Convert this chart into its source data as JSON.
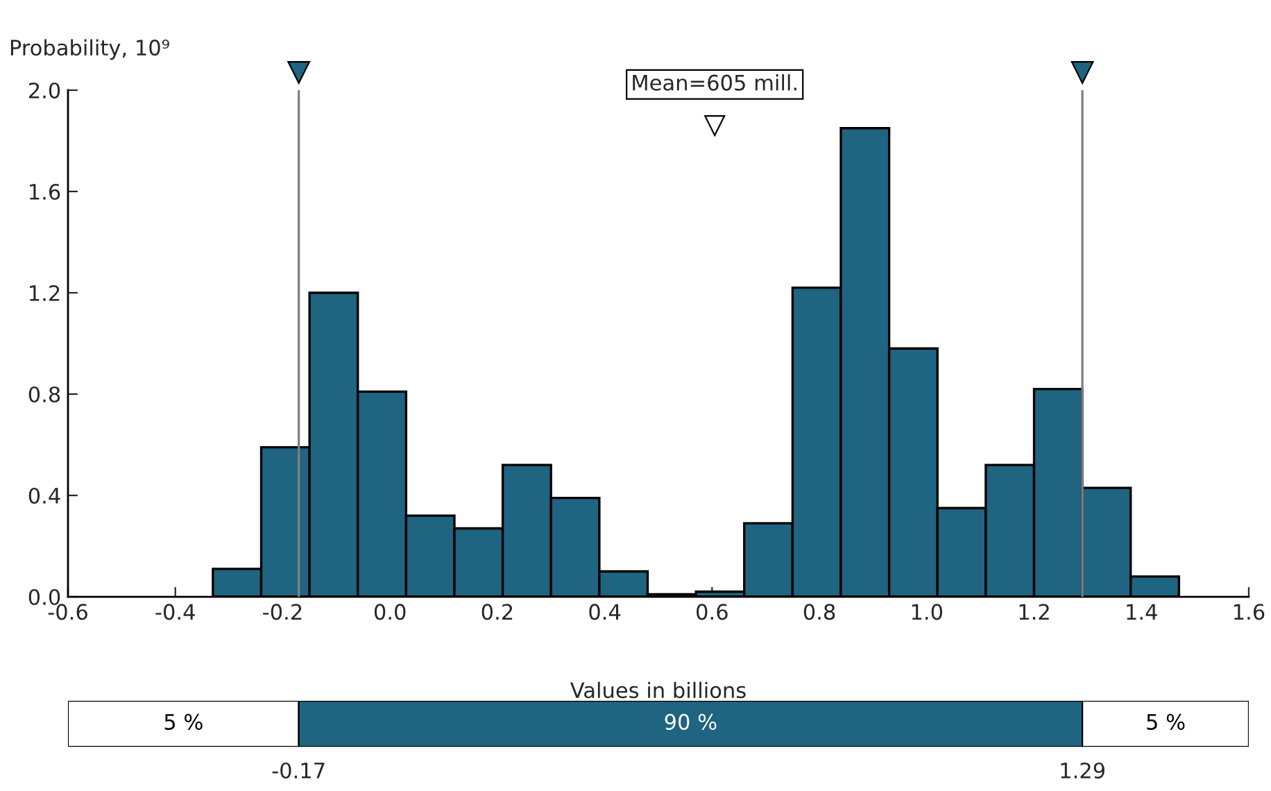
{
  "chart_data": [
    {
      "type": "histogram",
      "ylabel": "Probability, 10⁹",
      "xlabel": "Values in billions",
      "color": "#1f6480",
      "bins": [
        -0.33,
        -0.24,
        -0.15,
        -0.06,
        0.03,
        0.12,
        0.21,
        0.3,
        0.39,
        0.48,
        0.57,
        0.66,
        0.75,
        0.84,
        0.93,
        1.02,
        1.11,
        1.2,
        1.29,
        1.38,
        1.47
      ],
      "values": [
        0.11,
        0.59,
        1.2,
        0.81,
        0.32,
        0.27,
        0.52,
        0.39,
        0.1,
        0.01,
        0.02,
        0.29,
        1.22,
        1.85,
        0.98,
        0.35,
        0.52,
        0.82,
        0.43,
        0.08
      ],
      "xlim": [
        -0.6,
        1.6
      ],
      "ylim": [
        0,
        2.0
      ],
      "xticks": [
        {
          "value": -0.6,
          "label": "-0.6"
        },
        {
          "value": -0.4,
          "label": "-0.4"
        },
        {
          "value": -0.2,
          "label": "-0.2"
        },
        {
          "value": 0,
          "label": "0.0"
        },
        {
          "value": 0.2,
          "label": "0.2"
        },
        {
          "value": 0.4,
          "label": "0.4"
        },
        {
          "value": 0.6,
          "label": "0.6"
        },
        {
          "value": 0.8,
          "label": "0.8"
        },
        {
          "value": 1.0,
          "label": "1.0"
        },
        {
          "value": 1.2,
          "label": "1.2"
        },
        {
          "value": 1.4,
          "label": "1.4"
        },
        {
          "value": 1.6,
          "label": "1.6"
        }
      ],
      "yticks": [
        {
          "value": 0,
          "label": "0.0"
        },
        {
          "value": 0.4,
          "label": "0.4"
        },
        {
          "value": 0.8,
          "label": "0.8"
        },
        {
          "value": 1.2,
          "label": "1.2"
        },
        {
          "value": 1.6,
          "label": "1.6"
        },
        {
          "value": 2.0,
          "label": "2.0"
        }
      ],
      "ref_lines": [
        {
          "axis": "x",
          "value": -0.17,
          "color": "#808080"
        },
        {
          "axis": "x",
          "value": 1.29,
          "color": "#808080"
        }
      ],
      "annotations": [
        {
          "text": "Mean=605 mill.",
          "x": 0.605,
          "y": 1.86
        }
      ],
      "grid": false
    },
    {
      "type": "bar",
      "orientation": "horizontal",
      "categories": [
        null
      ],
      "xlim": [
        -0.6,
        1.6
      ],
      "xticks": [
        {
          "value": -0.17,
          "label": "-0.17"
        },
        {
          "value": 1.29,
          "label": "1.29"
        }
      ],
      "series": [
        {
          "color": "#ffffff",
          "base": [
            -0.6
          ],
          "values": [
            0.43
          ]
        },
        {
          "color": "#1f6480",
          "base": [
            -0.17
          ],
          "values": [
            1.46
          ]
        },
        {
          "color": "#ffffff",
          "base": [
            1.29
          ],
          "values": [
            0.31
          ]
        }
      ],
      "annotations": [
        "5 %",
        "90 %",
        "5 %"
      ]
    }
  ]
}
